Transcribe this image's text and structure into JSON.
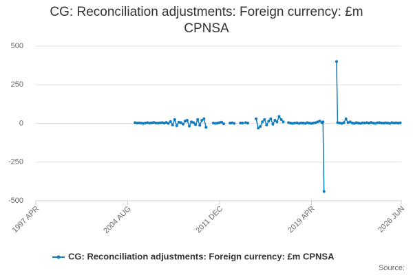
{
  "chart_data": {
    "type": "line",
    "title": "CG: Reconciliation adjustments: Foreign currency: £m CPNSA",
    "source": "Source:",
    "x": [
      "2005 MAR",
      "2005 MAY",
      "2005 JUL",
      "2005 SEP",
      "2005 NOV",
      "2006 JAN",
      "2006 MAR",
      "2006 MAY",
      "2006 JUL",
      "2006 SEP",
      "2006 NOV",
      "2007 JAN",
      "2007 MAR",
      "2007 MAY",
      "2007 JUL",
      "2007 SEP",
      "2007 NOV",
      "2008 JAN",
      "2008 MAR",
      "2008 MAY",
      "2008 JUL",
      "2008 SEP",
      "2008 NOV",
      "2009 JAN",
      "2009 MAR",
      "2009 MAY",
      "2009 JUL",
      "2009 SEP",
      "2009 NOV",
      "2010 JAN",
      "2010 MAR",
      "2010 MAY",
      "2010 JUL",
      "2010 SEP",
      "2010 NOV",
      "2011 FEB",
      "2011 JUN",
      "2011 AUG",
      "2011 OCT",
      "2011 DEC",
      "2012 FEB",
      "2012 APR",
      "2012 JUN",
      "2012 OCT",
      "2012 DEC",
      "2013 FEB",
      "2013 APR",
      "2013 AUG",
      "2013 OCT",
      "2014 JAN",
      "2014 MAR",
      "2014 JUN",
      "2014 NOV",
      "2015 JAN",
      "2015 MAR",
      "2015 MAY",
      "2015 JUL",
      "2015 SEP",
      "2015 NOV",
      "2016 JAN",
      "2016 MAR",
      "2016 MAY",
      "2016 JUL",
      "2016 SEP",
      "2016 NOV",
      "2017 JAN",
      "2017 MAR",
      "2017 JUN",
      "2017 AUG",
      "2017 OCT",
      "2017 DEC",
      "2018 FEB",
      "2018 APR",
      "2018 JUN",
      "2018 AUG",
      "2018 OCT",
      "2018 DEC",
      "2019 FEB",
      "2019 APR",
      "2019 JUN",
      "2019 AUG",
      "2019 OCT",
      "2019 DEC",
      "2020 FEB",
      "2020 MAR",
      "2020 APR",
      "2020 JUL",
      "2021 APR",
      "2021 MAY",
      "2021 JUL",
      "2021 SEP",
      "2021 NOV",
      "2022 JAN",
      "2022 MAR",
      "2022 MAY",
      "2022 JUL",
      "2022 SEP",
      "2022 NOV",
      "2023 JAN",
      "2023 MAR",
      "2023 MAY",
      "2023 JUL",
      "2023 SEP",
      "2023 NOV",
      "2024 JAN",
      "2024 MAR",
      "2024 MAY",
      "2024 JUL",
      "2024 SEP",
      "2024 NOV",
      "2025 JAN",
      "2025 MAR",
      "2025 MAY",
      "2025 JUL",
      "2025 SEP",
      "2025 NOV",
      "2026 JAN",
      "2026 MAR",
      "2026 MAY"
    ],
    "series": [
      {
        "name": "CG: Reconciliation adjustments: Foreign currency: £m CPNSA",
        "color": "#0f7bc0",
        "values": [
          5,
          3,
          4,
          2,
          0,
          3,
          5,
          2,
          4,
          6,
          3,
          2,
          4,
          5,
          3,
          6,
          0,
          12,
          -10,
          25,
          -15,
          8,
          5,
          -5,
          15,
          20,
          -18,
          10,
          5,
          -8,
          25,
          -12,
          20,
          30,
          -25,
          null,
          3,
          0,
          2,
          5,
          8,
          -3,
          null,
          2,
          4,
          0,
          null,
          3,
          2,
          5,
          2,
          null,
          30,
          -30,
          -20,
          10,
          25,
          -10,
          15,
          30,
          -5,
          20,
          10,
          45,
          25,
          10,
          null,
          5,
          2,
          0,
          3,
          4,
          0,
          3,
          2,
          0,
          5,
          2,
          0,
          3,
          5,
          10,
          15,
          5,
          10,
          -440,
          null,
          400,
          5,
          3,
          0,
          5,
          30,
          5,
          10,
          3,
          0,
          5,
          2,
          0,
          4,
          3,
          5,
          2,
          6,
          3,
          0,
          4,
          5,
          3,
          2,
          4,
          3,
          0,
          5,
          3,
          4,
          2,
          4
        ]
      }
    ],
    "xlim": [
      "1997 APR",
      "2026 JUN"
    ],
    "xticks": [
      "1997 APR",
      "2004 AUG",
      "2011 DEC",
      "2019 APR",
      "2026 JUN"
    ],
    "ylim": [
      -500,
      500
    ],
    "yticks": [
      500,
      250,
      0,
      -250,
      -500
    ],
    "grid": true
  }
}
